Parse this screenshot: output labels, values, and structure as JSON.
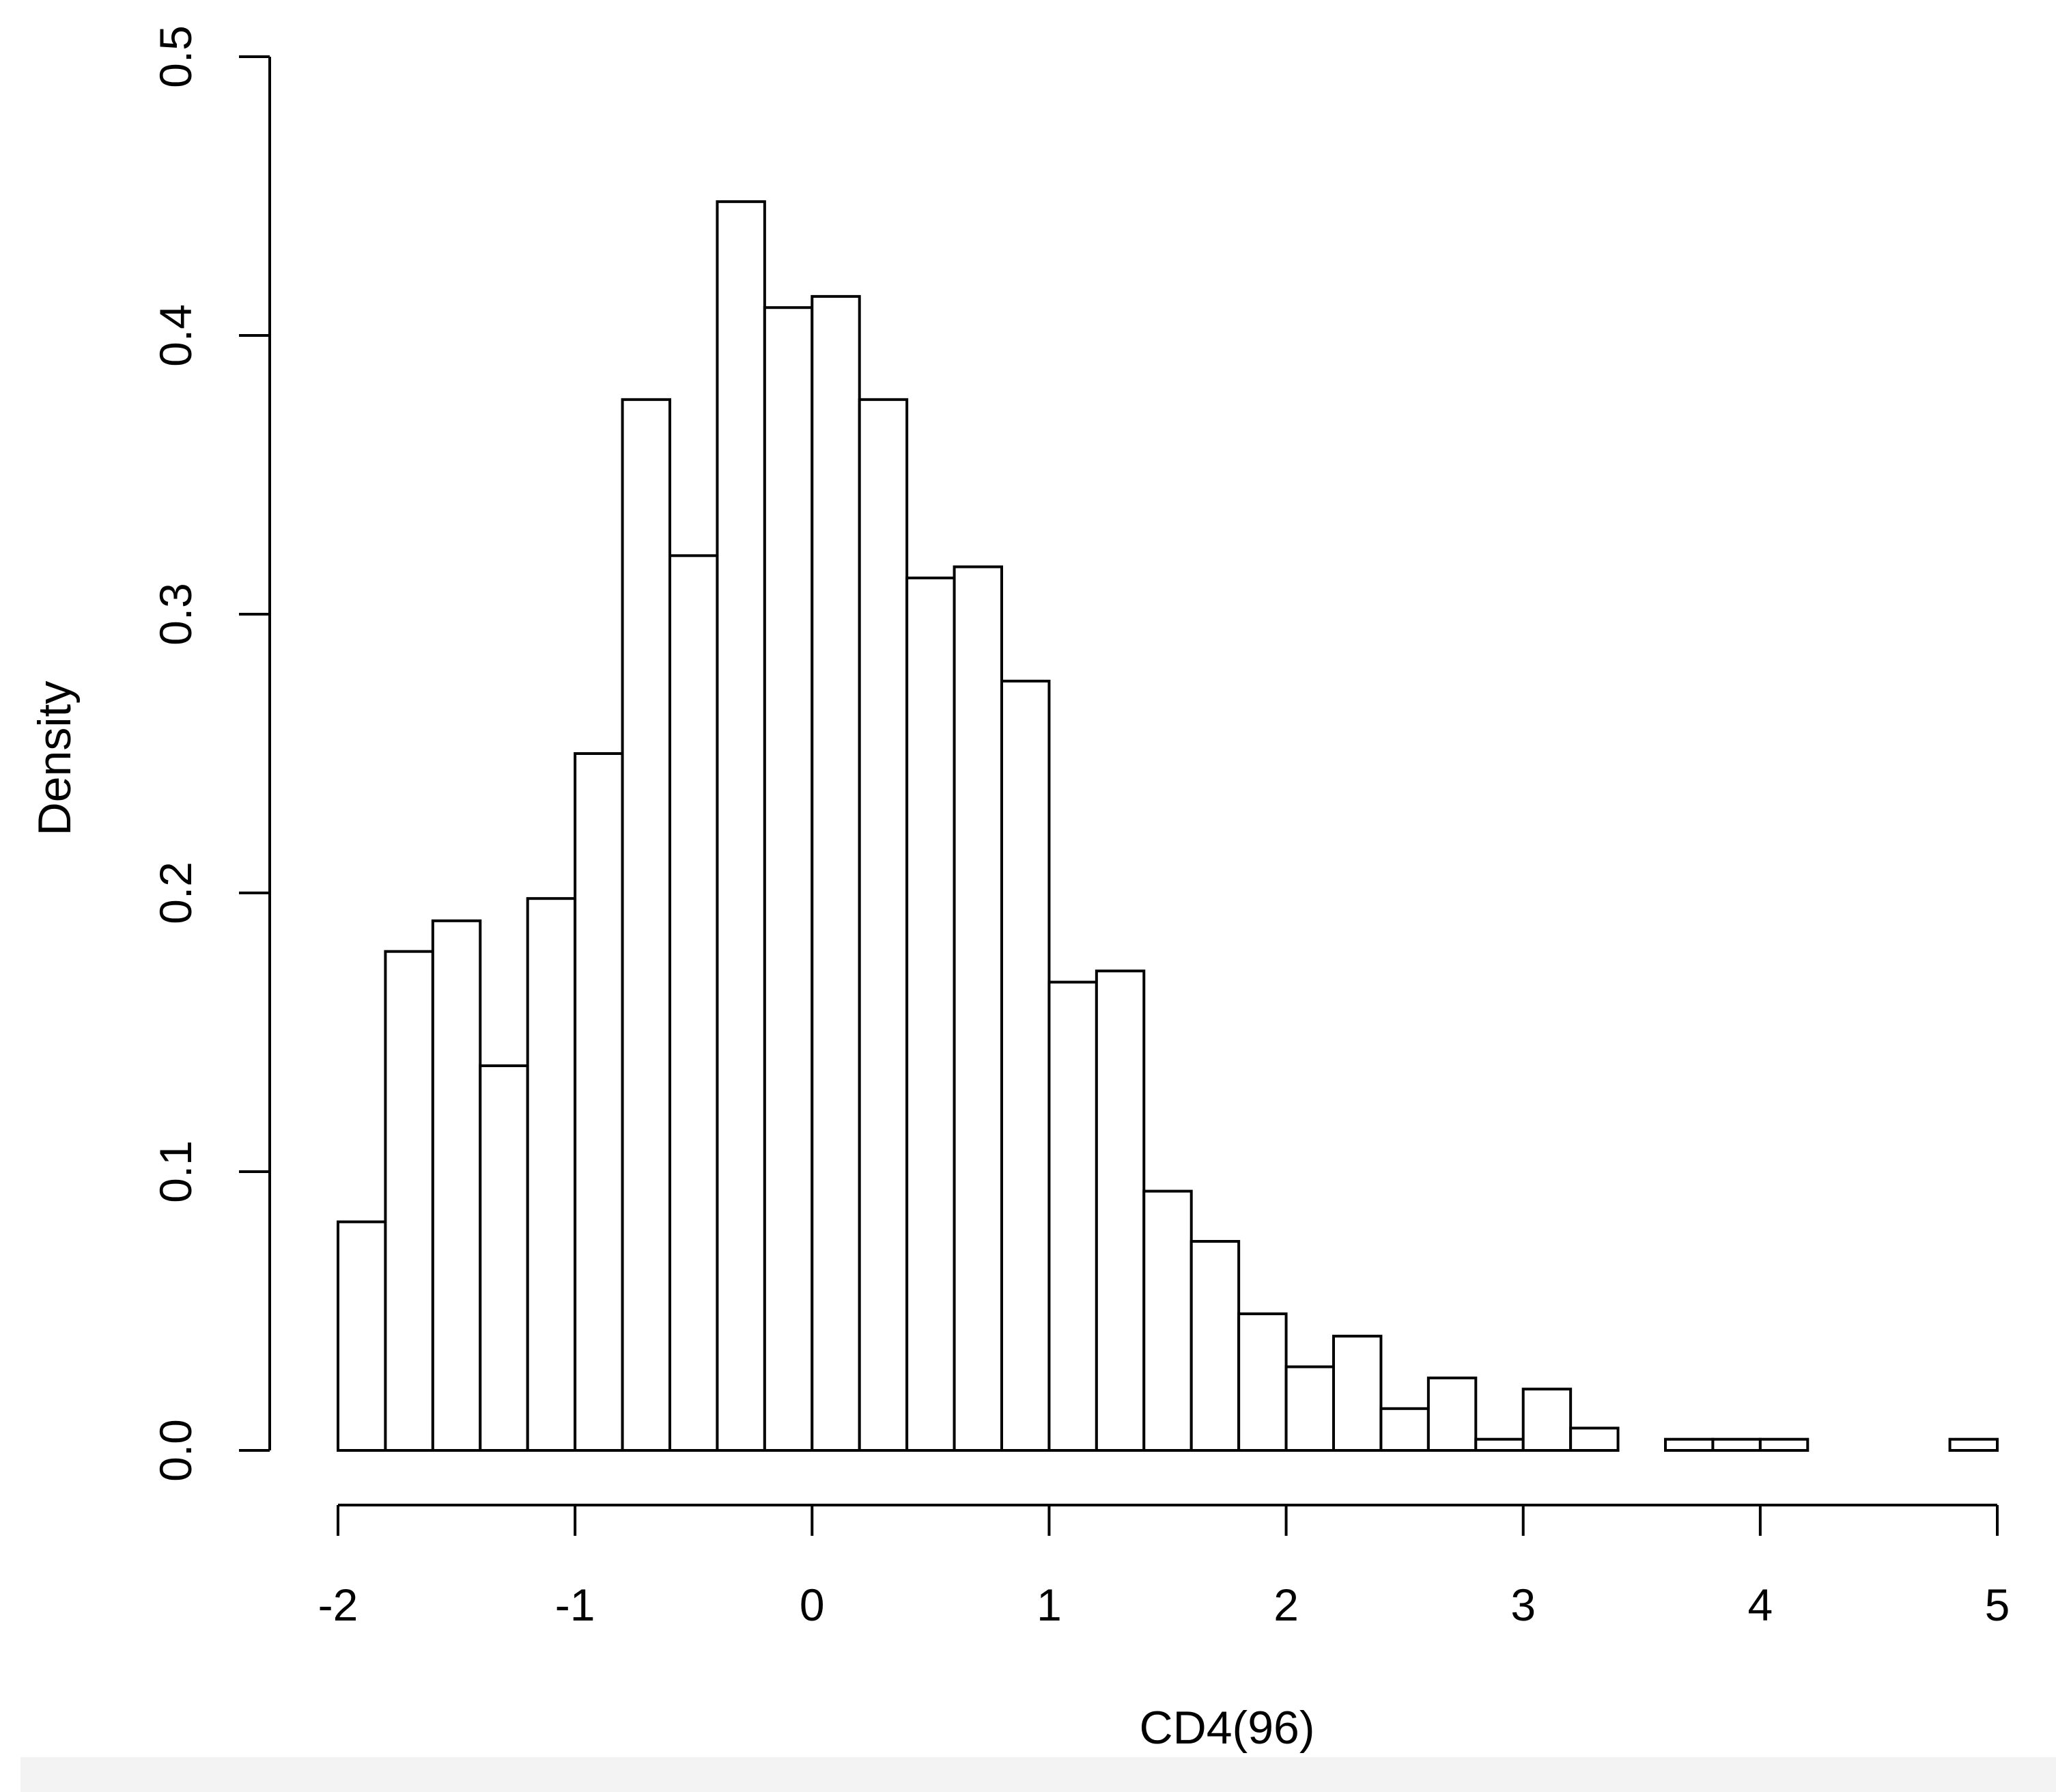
{
  "chart_data": {
    "type": "histogram",
    "title": "",
    "xlabel": "CD4(96)",
    "ylabel": "Density",
    "xlim": [
      -2,
      5
    ],
    "ylim": [
      0,
      0.5
    ],
    "x_ticks": [
      -2,
      -1,
      0,
      1,
      2,
      3,
      4,
      5
    ],
    "x_tick_labels": [
      "-2",
      "-1",
      "0",
      "1",
      "2",
      "3",
      "4",
      "5"
    ],
    "y_ticks": [
      0,
      0.1,
      0.2,
      0.3,
      0.4,
      0.5
    ],
    "y_tick_labels": [
      "0.0",
      "0.1",
      "0.2",
      "0.3",
      "0.4",
      "0.5"
    ],
    "grid": false,
    "legend": "none",
    "bin_width": 0.2,
    "bins": [
      {
        "x0": -2.0,
        "x1": -1.8,
        "density": 0.082
      },
      {
        "x0": -1.8,
        "x1": -1.6,
        "density": 0.179
      },
      {
        "x0": -1.6,
        "x1": -1.4,
        "density": 0.19
      },
      {
        "x0": -1.4,
        "x1": -1.2,
        "density": 0.138
      },
      {
        "x0": -1.2,
        "x1": -1.0,
        "density": 0.198
      },
      {
        "x0": -1.0,
        "x1": -0.8,
        "density": 0.25
      },
      {
        "x0": -0.8,
        "x1": -0.6,
        "density": 0.377
      },
      {
        "x0": -0.6,
        "x1": -0.4,
        "density": 0.321
      },
      {
        "x0": -0.4,
        "x1": -0.2,
        "density": 0.448
      },
      {
        "x0": -0.2,
        "x1": 0.0,
        "density": 0.41
      },
      {
        "x0": 0.0,
        "x1": 0.2,
        "density": 0.414
      },
      {
        "x0": 0.2,
        "x1": 0.4,
        "density": 0.377
      },
      {
        "x0": 0.4,
        "x1": 0.6,
        "density": 0.313
      },
      {
        "x0": 0.6,
        "x1": 0.8,
        "density": 0.317
      },
      {
        "x0": 0.8,
        "x1": 1.0,
        "density": 0.276
      },
      {
        "x0": 1.0,
        "x1": 1.2,
        "density": 0.168
      },
      {
        "x0": 1.2,
        "x1": 1.4,
        "density": 0.172
      },
      {
        "x0": 1.4,
        "x1": 1.6,
        "density": 0.093
      },
      {
        "x0": 1.6,
        "x1": 1.8,
        "density": 0.075
      },
      {
        "x0": 1.8,
        "x1": 2.0,
        "density": 0.049
      },
      {
        "x0": 2.0,
        "x1": 2.2,
        "density": 0.03
      },
      {
        "x0": 2.2,
        "x1": 2.4,
        "density": 0.041
      },
      {
        "x0": 2.4,
        "x1": 2.6,
        "density": 0.015
      },
      {
        "x0": 2.6,
        "x1": 2.8,
        "density": 0.026
      },
      {
        "x0": 2.8,
        "x1": 3.0,
        "density": 0.004
      },
      {
        "x0": 3.0,
        "x1": 3.2,
        "density": 0.022
      },
      {
        "x0": 3.2,
        "x1": 3.4,
        "density": 0.008
      },
      {
        "x0": 3.4,
        "x1": 3.6,
        "density": 0.0
      },
      {
        "x0": 3.6,
        "x1": 3.8,
        "density": 0.004
      },
      {
        "x0": 3.8,
        "x1": 4.0,
        "density": 0.004
      },
      {
        "x0": 4.0,
        "x1": 4.2,
        "density": 0.004
      },
      {
        "x0": 4.2,
        "x1": 4.4,
        "density": 0.0
      },
      {
        "x0": 4.4,
        "x1": 4.6,
        "density": 0.0
      },
      {
        "x0": 4.6,
        "x1": 4.8,
        "density": 0.0
      },
      {
        "x0": 4.8,
        "x1": 5.0,
        "density": 0.004
      }
    ]
  }
}
